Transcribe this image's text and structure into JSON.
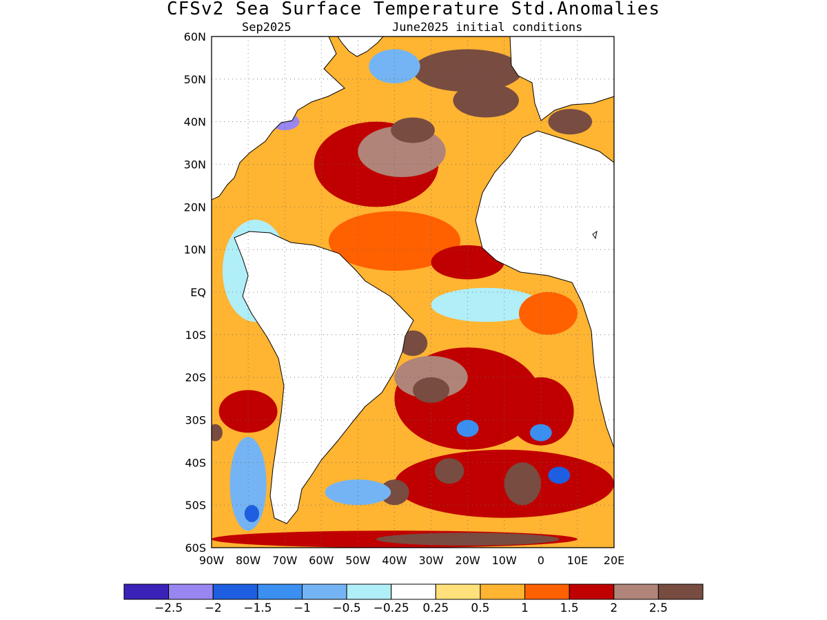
{
  "title": "CFSv2 Sea Surface Temperature Std.Anomalies",
  "subtitle_left": "Sep2025",
  "subtitle_right": "June2025 initial conditions",
  "map": {
    "lon_range": [
      -90,
      20
    ],
    "lat_range": [
      -60,
      60
    ],
    "lon_ticks": [
      "90W",
      "80W",
      "70W",
      "60W",
      "50W",
      "40W",
      "30W",
      "20W",
      "10W",
      "0",
      "10E",
      "20E"
    ],
    "lat_ticks": [
      "60N",
      "50N",
      "40N",
      "30N",
      "20N",
      "10N",
      "EQ",
      "10S",
      "20S",
      "30S",
      "40S",
      "50S",
      "60S"
    ],
    "grid": "dotted"
  },
  "colorbar": {
    "colors": [
      "#3a22b8",
      "#9a86f0",
      "#1e5ee0",
      "#3b8ff0",
      "#74b4f4",
      "#b0eef8",
      "#ffffff",
      "#ffe07a",
      "#ffb432",
      "#ff6000",
      "#c00000",
      "#b08478",
      "#784c40"
    ],
    "labels": [
      "-2.5",
      "-2",
      "-1.5",
      "-1",
      "-0.5",
      "-0.25",
      "0.25",
      "0.5",
      "1",
      "1.5",
      "2",
      "2.5"
    ]
  },
  "anomaly_regions": [
    {
      "level": 1.5,
      "lon": -45,
      "lat": 30,
      "rx": 17,
      "ry": 10
    },
    {
      "level": 2,
      "lon": -38,
      "lat": 33,
      "rx": 12,
      "ry": 6
    },
    {
      "level": 2.5,
      "lon": -20,
      "lat": 52,
      "rx": 15,
      "ry": 5
    },
    {
      "level": 2.5,
      "lon": -35,
      "lat": 38,
      "rx": 6,
      "ry": 3
    },
    {
      "level": 2.5,
      "lon": -15,
      "lat": 45,
      "rx": 9,
      "ry": 4
    },
    {
      "level": 2.5,
      "lon": 8,
      "lat": 40,
      "rx": 6,
      "ry": 3
    },
    {
      "level": -2.5,
      "lon": -70,
      "lat": 40,
      "rx": 4,
      "ry": 2
    },
    {
      "level": -1,
      "lon": -40,
      "lat": 53,
      "rx": 7,
      "ry": 4
    },
    {
      "level": 1,
      "lon": -40,
      "lat": 12,
      "rx": 18,
      "ry": 7
    },
    {
      "level": 1.5,
      "lon": -20,
      "lat": 7,
      "rx": 10,
      "ry": 4
    },
    {
      "level": -0.5,
      "lon": -15,
      "lat": -3,
      "rx": 15,
      "ry": 4
    },
    {
      "level": -0.5,
      "lon": -78,
      "lat": 5,
      "rx": 9,
      "ry": 12
    },
    {
      "level": 1,
      "lon": 2,
      "lat": -5,
      "rx": 8,
      "ry": 5
    },
    {
      "level": 1.5,
      "lon": -20,
      "lat": -25,
      "rx": 20,
      "ry": 12
    },
    {
      "level": 2,
      "lon": -30,
      "lat": -20,
      "rx": 10,
      "ry": 5
    },
    {
      "level": 2.5,
      "lon": -30,
      "lat": -23,
      "rx": 5,
      "ry": 3
    },
    {
      "level": 2.5,
      "lon": -35,
      "lat": -12,
      "rx": 4,
      "ry": 3
    },
    {
      "level": 1.5,
      "lon": 0,
      "lat": -28,
      "rx": 9,
      "ry": 8
    },
    {
      "level": -1.5,
      "lon": -20,
      "lat": -32,
      "rx": 3,
      "ry": 2
    },
    {
      "level": -1.5,
      "lon": 0,
      "lat": -33,
      "rx": 3,
      "ry": 2
    },
    {
      "level": 1.5,
      "lon": -10,
      "lat": -45,
      "rx": 30,
      "ry": 8
    },
    {
      "level": 2.5,
      "lon": -5,
      "lat": -45,
      "rx": 5,
      "ry": 5
    },
    {
      "level": -2,
      "lon": 5,
      "lat": -43,
      "rx": 3,
      "ry": 2
    },
    {
      "level": 2.5,
      "lon": -40,
      "lat": -47,
      "rx": 4,
      "ry": 3
    },
    {
      "level": 2.5,
      "lon": -25,
      "lat": -42,
      "rx": 4,
      "ry": 3
    },
    {
      "level": -1,
      "lon": -50,
      "lat": -47,
      "rx": 9,
      "ry": 3
    },
    {
      "level": -1,
      "lon": -80,
      "lat": -45,
      "rx": 5,
      "ry": 11
    },
    {
      "level": -2,
      "lon": -79,
      "lat": -52,
      "rx": 2,
      "ry": 2
    },
    {
      "level": 1.5,
      "lon": -80,
      "lat": -28,
      "rx": 8,
      "ry": 5
    },
    {
      "level": 2.5,
      "lon": -89,
      "lat": -33,
      "rx": 2,
      "ry": 2
    },
    {
      "level": 1.5,
      "lon": -40,
      "lat": -58,
      "rx": 50,
      "ry": 2
    },
    {
      "level": 2.5,
      "lon": -20,
      "lat": -58,
      "rx": 25,
      "ry": 1.5
    }
  ]
}
